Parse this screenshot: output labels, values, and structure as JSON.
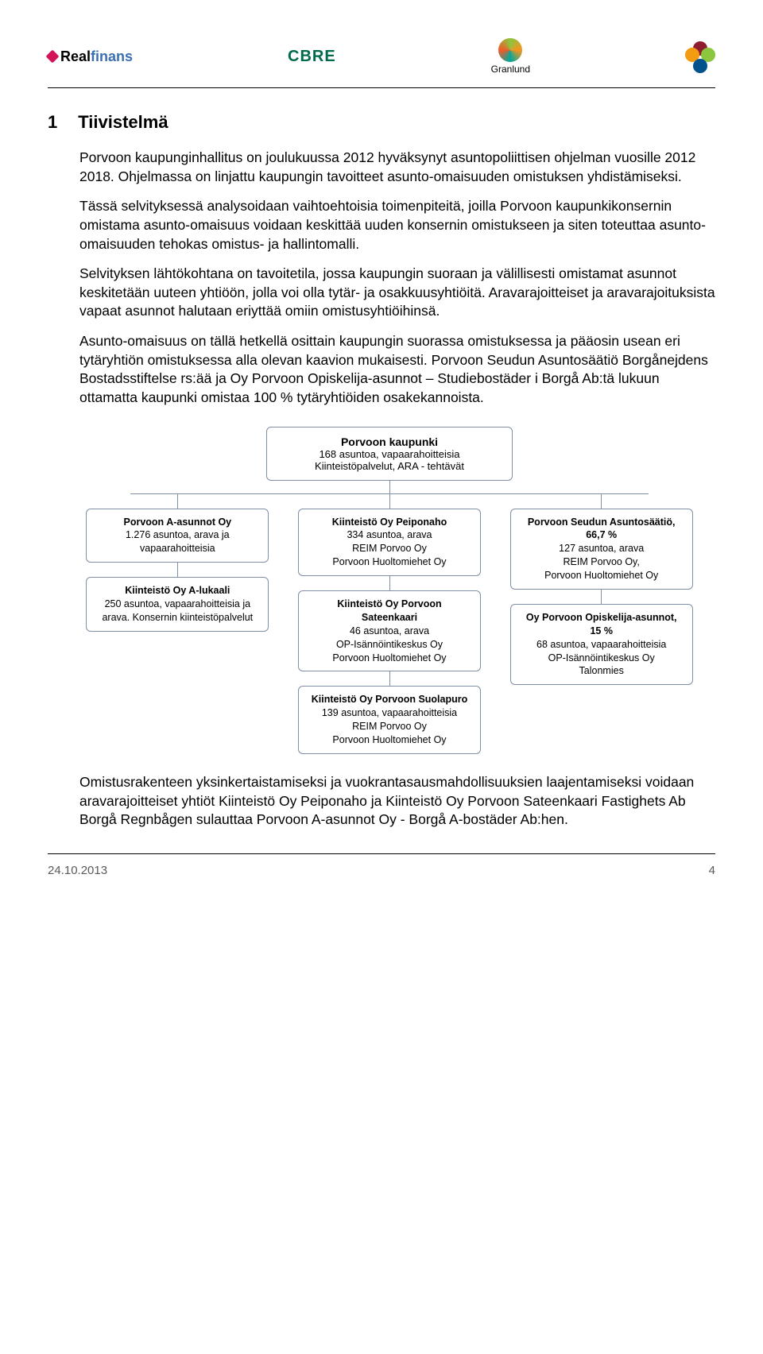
{
  "header": {
    "logos": {
      "realfinans_plain": "Real",
      "realfinans_accent": "finans",
      "cbre": "CBRE",
      "granlund": "Granlund"
    }
  },
  "section": {
    "number": "1",
    "title": "Tiivistelmä"
  },
  "paragraphs": {
    "p1": "Porvoon kaupunginhallitus on joulukuussa 2012 hyväksynyt asuntopoliittisen ohjelman vuosille 2012 2018. Ohjelmassa on linjattu kaupungin tavoitteet asunto-omaisuuden omistuksen yhdistämiseksi.",
    "p2": "Tässä selvityksessä analysoidaan vaihtoehtoisia toimenpiteitä, joilla Porvoon kaupunkikonsernin omistama asunto-omaisuus voidaan keskittää uuden konsernin omistukseen ja siten toteuttaa asunto-omaisuuden tehokas omistus- ja hallintomalli.",
    "p3": "Selvityksen lähtökohtana on tavoitetila, jossa kaupungin suoraan ja välillisesti omistamat asunnot keskitetään uuteen yhtiöön, jolla voi olla tytär- ja osakkuusyhtiöitä. Aravarajoitteiset ja aravarajoituksista vapaat asunnot halutaan eriyttää omiin omistusyhtiöihinsä.",
    "p4": "Asunto-omaisuus on tällä hetkellä osittain kaupungin suorassa omistuksessa ja pääosin usean eri tytäryhtiön omistuksessa alla olevan kaavion mukaisesti. Porvoon Seudun Asuntosäätiö Borgånejdens Bostadsstiftelse rs:ää ja Oy Porvoon Opiskelija-asunnot – Studiebostäder i Borgå Ab:tä lukuun ottamatta kaupunki omistaa 100 % tytäryhtiöiden osakekannoista.",
    "p5": "Omistusrakenteen yksinkertaistamiseksi ja vuokrantasausmahdollisuuksien laajentamiseksi voidaan aravarajoitteiset yhtiöt Kiinteistö Oy Peiponaho ja Kiinteistö Oy Porvoon Sateenkaari Fastighets Ab Borgå Regnbågen sulauttaa Porvoon A-asunnot Oy - Borgå A-bostäder Ab:hen."
  },
  "orgchart": {
    "root": {
      "title": "Porvoon kaupunki",
      "line1": "168 asuntoa, vapaarahoitteisia",
      "line2": "Kiinteistöpalvelut, ARA - tehtävät"
    },
    "col1": [
      {
        "title": "Porvoon A-asunnot Oy",
        "lines": [
          "1.276 asuntoa, arava ja",
          "vapaarahoitteisia"
        ]
      },
      {
        "title": "Kiinteistö Oy A-lukaali",
        "lines": [
          "250 asuntoa, vapaarahoitteisia ja",
          "arava. Konsernin kiinteistöpalvelut"
        ]
      }
    ],
    "col2": [
      {
        "title": "Kiinteistö Oy Peiponaho",
        "lines": [
          "334 asuntoa, arava",
          "REIM Porvoo Oy",
          "Porvoon Huoltomiehet Oy"
        ]
      },
      {
        "title": "Kiinteistö Oy Porvoon Sateenkaari",
        "lines": [
          "46 asuntoa, arava",
          "OP-Isännöintikeskus Oy",
          "Porvoon Huoltomiehet Oy"
        ]
      },
      {
        "title": "Kiinteistö Oy Porvoon Suolapuro",
        "lines": [
          "139 asuntoa, vapaarahoitteisia",
          "REIM Porvoo Oy",
          "Porvoon Huoltomiehet Oy"
        ]
      }
    ],
    "col3": [
      {
        "title": "Porvoon Seudun Asuntosäätiö, 66,7 %",
        "lines": [
          "127 asuntoa, arava",
          "REIM Porvoo Oy,",
          "Porvoon Huoltomiehet Oy"
        ]
      },
      {
        "title": "Oy Porvoon Opiskelija-asunnot, 15 %",
        "lines": [
          "68 asuntoa, vapaarahoitteisia",
          "OP-Isännöintikeskus Oy",
          "Talonmies"
        ]
      }
    ]
  },
  "footer": {
    "date": "24.10.2013",
    "page": "4"
  }
}
